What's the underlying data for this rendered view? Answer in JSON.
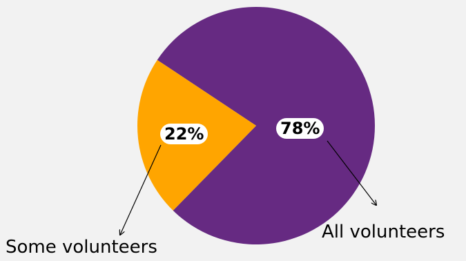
{
  "chart_data": {
    "type": "pie",
    "title": "",
    "slices": [
      {
        "label": "All volunteers",
        "value": 78,
        "value_label": "78%",
        "color": "#662a82"
      },
      {
        "label": "Some volunteers",
        "value": 22,
        "value_label": "22%",
        "color": "#ffa500"
      }
    ],
    "legend": "callout labels with arrows",
    "background": "#f2f2f2"
  }
}
